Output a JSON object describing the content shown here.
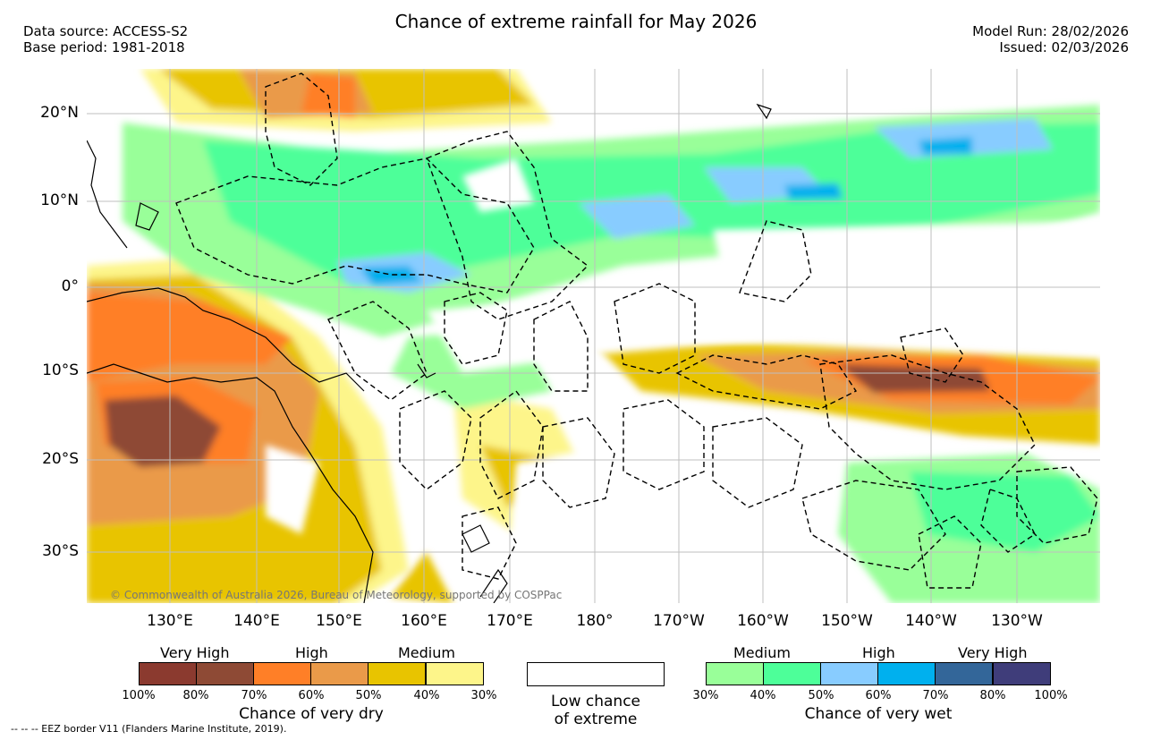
{
  "title": "Chance of extreme rainfall for May 2026",
  "meta_left": {
    "data_source": "Data source: ACCESS-S2",
    "base_period": "Base period: 1981-2018"
  },
  "meta_right": {
    "model_run": "Model Run: 28/02/2026",
    "issued": "Issued: 02/03/2026"
  },
  "map": {
    "lat_labels": [
      "20°N",
      "10°N",
      "0°",
      "10°S",
      "20°S",
      "30°S"
    ],
    "lon_labels": [
      "130°E",
      "140°E",
      "150°E",
      "160°E",
      "170°E",
      "180°",
      "170°W",
      "160°W",
      "150°W",
      "140°W",
      "130°W"
    ],
    "copyright": "© Commonwealth of Australia 2026, Bureau of Meteorology, supported by COSPPac"
  },
  "legend_dry": {
    "categories": [
      "Very High",
      "High",
      "Medium"
    ],
    "colors": [
      "#8b3a2f",
      "#8e4a35",
      "#ff7f27",
      "#ea9a49",
      "#e8c400",
      "#fdf58a"
    ],
    "ticks": [
      "100%",
      "80%",
      "70%",
      "60%",
      "50%",
      "40%",
      "30%"
    ],
    "caption": "Chance of very dry"
  },
  "legend_low": {
    "line1": "Low chance",
    "line2": "of extreme"
  },
  "legend_wet": {
    "categories": [
      "Medium",
      "High",
      "Very High"
    ],
    "colors": [
      "#99ff99",
      "#4dff99",
      "#88ccff",
      "#00b0ee",
      "#336699",
      "#3f3d7a"
    ],
    "ticks": [
      "30%",
      "40%",
      "50%",
      "60%",
      "70%",
      "80%",
      "100%"
    ],
    "caption": "Chance of very wet"
  },
  "footer": {
    "eez_note": "-- -- -- EEZ border V11 (Flanders Marine Institute, 2019)."
  }
}
